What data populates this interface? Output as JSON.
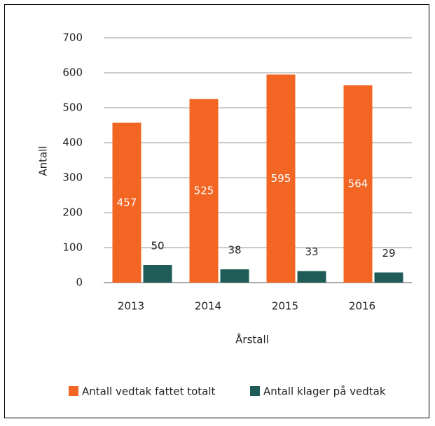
{
  "chart_data": {
    "type": "bar",
    "x_label": "Årstall",
    "y_label": "Antall",
    "categories": [
      "2013",
      "2014",
      "2015",
      "2016"
    ],
    "series": [
      {
        "name": "Antall vedtak fattet totalt",
        "color": "#f26522",
        "values": [
          457,
          525,
          595,
          564
        ]
      },
      {
        "name": "Antall klager på vedtak",
        "color": "#1f5c57",
        "values": [
          50,
          38,
          33,
          29
        ]
      }
    ],
    "ylim": [
      0,
      700
    ],
    "yticks": [
      0,
      100,
      200,
      300,
      400,
      500,
      600,
      700
    ],
    "grid": true,
    "legend": "bottom"
  }
}
